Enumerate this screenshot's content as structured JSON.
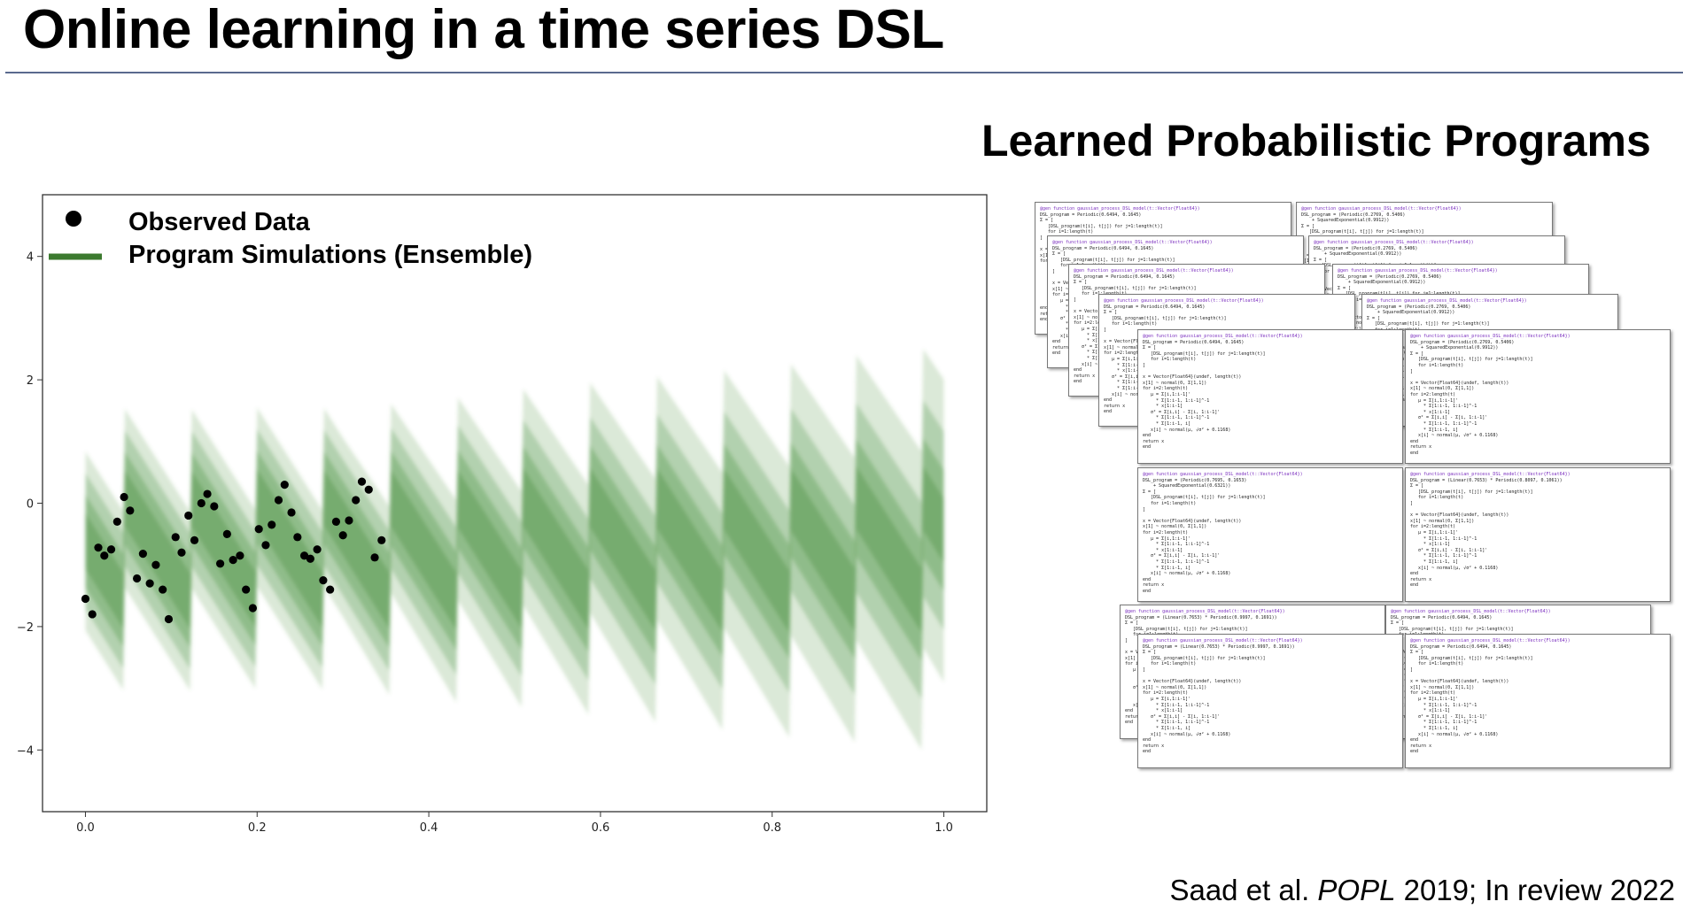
{
  "slide": {
    "title": "Online learning in a time series DSL",
    "programs_title": "Learned Probabilistic Programs",
    "citation_prefix": "Saad et al. ",
    "citation_venue": "POPL",
    "citation_suffix": " 2019; In review 2022"
  },
  "chart_data": {
    "type": "scatter",
    "xlim": [
      -0.05,
      1.05
    ],
    "ylim": [
      -5,
      5
    ],
    "xticks": [
      0.0,
      0.2,
      0.4,
      0.6,
      0.8,
      1.0
    ],
    "xtick_labels": [
      "0.0",
      "0.2",
      "0.4",
      "0.6",
      "0.8",
      "1.0"
    ],
    "yticks": [
      -4,
      -2,
      0,
      2,
      4
    ],
    "ytick_labels": [
      "−4",
      "−2",
      "0",
      "2",
      "4"
    ],
    "grid": false,
    "legend_position": "top-left",
    "legend": [
      {
        "label": "Observed Data",
        "marker": "circle",
        "color": "#000000"
      },
      {
        "label": "Program Simulations (Ensemble)",
        "marker": "line",
        "color": "#3c7a2f"
      }
    ],
    "band_color": "#5a9a4e",
    "series": [
      {
        "label": "Observed Data",
        "x": [
          0.0,
          0.008,
          0.015,
          0.022,
          0.03,
          0.037,
          0.045,
          0.052,
          0.06,
          0.067,
          0.075,
          0.082,
          0.09,
          0.097,
          0.105,
          0.112,
          0.12,
          0.127,
          0.135,
          0.142,
          0.15,
          0.157,
          0.165,
          0.172,
          0.18,
          0.187,
          0.195,
          0.202,
          0.21,
          0.217,
          0.225,
          0.232,
          0.24,
          0.247,
          0.255,
          0.262,
          0.27,
          0.277,
          0.285,
          0.292,
          0.3,
          0.307,
          0.315,
          0.322,
          0.33,
          0.337,
          0.345
        ],
        "y": [
          -1.55,
          -1.8,
          -0.72,
          -0.85,
          -0.75,
          -0.3,
          0.1,
          -0.12,
          -1.22,
          -0.82,
          -1.3,
          -1.0,
          -1.4,
          -1.88,
          -0.55,
          -0.8,
          -0.2,
          -0.6,
          0.0,
          0.15,
          -0.05,
          -0.98,
          -0.5,
          -0.92,
          -0.85,
          -1.4,
          -1.7,
          -0.42,
          -0.68,
          -0.35,
          0.05,
          0.3,
          -0.15,
          -0.55,
          -0.85,
          -0.9,
          -0.75,
          -1.25,
          -1.4,
          -0.3,
          -0.52,
          -0.28,
          0.05,
          0.35,
          0.22,
          -0.88,
          -0.6
        ]
      }
    ]
  },
  "programs": {
    "header": "@gen function gaussian_process_DSL_model(t::Vector{Float64})",
    "cards": [
      {
        "program": "DSL_program = Periodic(0.6494, 0.1645)"
      },
      {
        "program": "DSL_program = (Periodic(0.2769, 0.5406)\n    + SquaredExponential(0.9912))"
      },
      {
        "program": "DSL_program = Periodic(0.6494, 0.1645)"
      },
      {
        "program": "DSL_program = (Periodic(0.2769, 0.5406)\n    + SquaredExponential(0.9912))"
      },
      {
        "program": "DSL_program = Periodic(0.6494, 0.1645)"
      },
      {
        "program": "DSL_program = (Periodic(0.2769, 0.5406)\n    + SquaredExponential(0.9912))"
      },
      {
        "program": "DSL_program = Periodic(0.6494, 0.1645)"
      },
      {
        "program": "DSL_program = (Periodic(0.2769, 0.5406)\n    + SquaredExponential(0.9912))"
      },
      {
        "program": "DSL_program = Periodic(0.6494, 0.1645)"
      },
      {
        "program": "DSL_program = (Periodic(0.2769, 0.5406)\n    + SquaredExponential(0.9912))"
      },
      {
        "program": "DSL_program = (Periodic(0.7695, 0.1653)\n    + SquaredExponential(0.6321))"
      },
      {
        "program": "DSL_program = (Linear(0.7653) * Periodic(0.8097, 0.1061))"
      },
      {
        "program": "DSL_program = (Linear(0.7653) * Periodic(0.9997, 0.1691))"
      },
      {
        "program": "DSL_program = Periodic(0.6494, 0.1645)"
      },
      {
        "program": "DSL_program = (Linear(0.7653) * Periodic(0.9997, 0.1691))"
      },
      {
        "program": "DSL_program = Periodic(0.6494, 0.1645)"
      }
    ],
    "body": "Σ = [\n   [DSL_program(t[i], t[j]) for j=1:length(t)]\n   for i=1:length(t)\n]\n\nx = Vector{Float64}(undef, length(t))\nx[1] ~ normal(0, Σ[1,1])\nfor i=2:length(t)\n   μ = Σ[i,1:i-1]'\n     * Σ[1:i-1, 1:i-1]^-1\n     * x[1:i-1]\n   σ² = Σ[i,i] - Σ[i, 1:i-1]'\n     * Σ[1:i-1, 1:i-1]^-1\n     * Σ[1:i-1, i]\n   x[i] ~ normal(μ, √σ² + 0.1168)\nend\nreturn x\nend"
  }
}
